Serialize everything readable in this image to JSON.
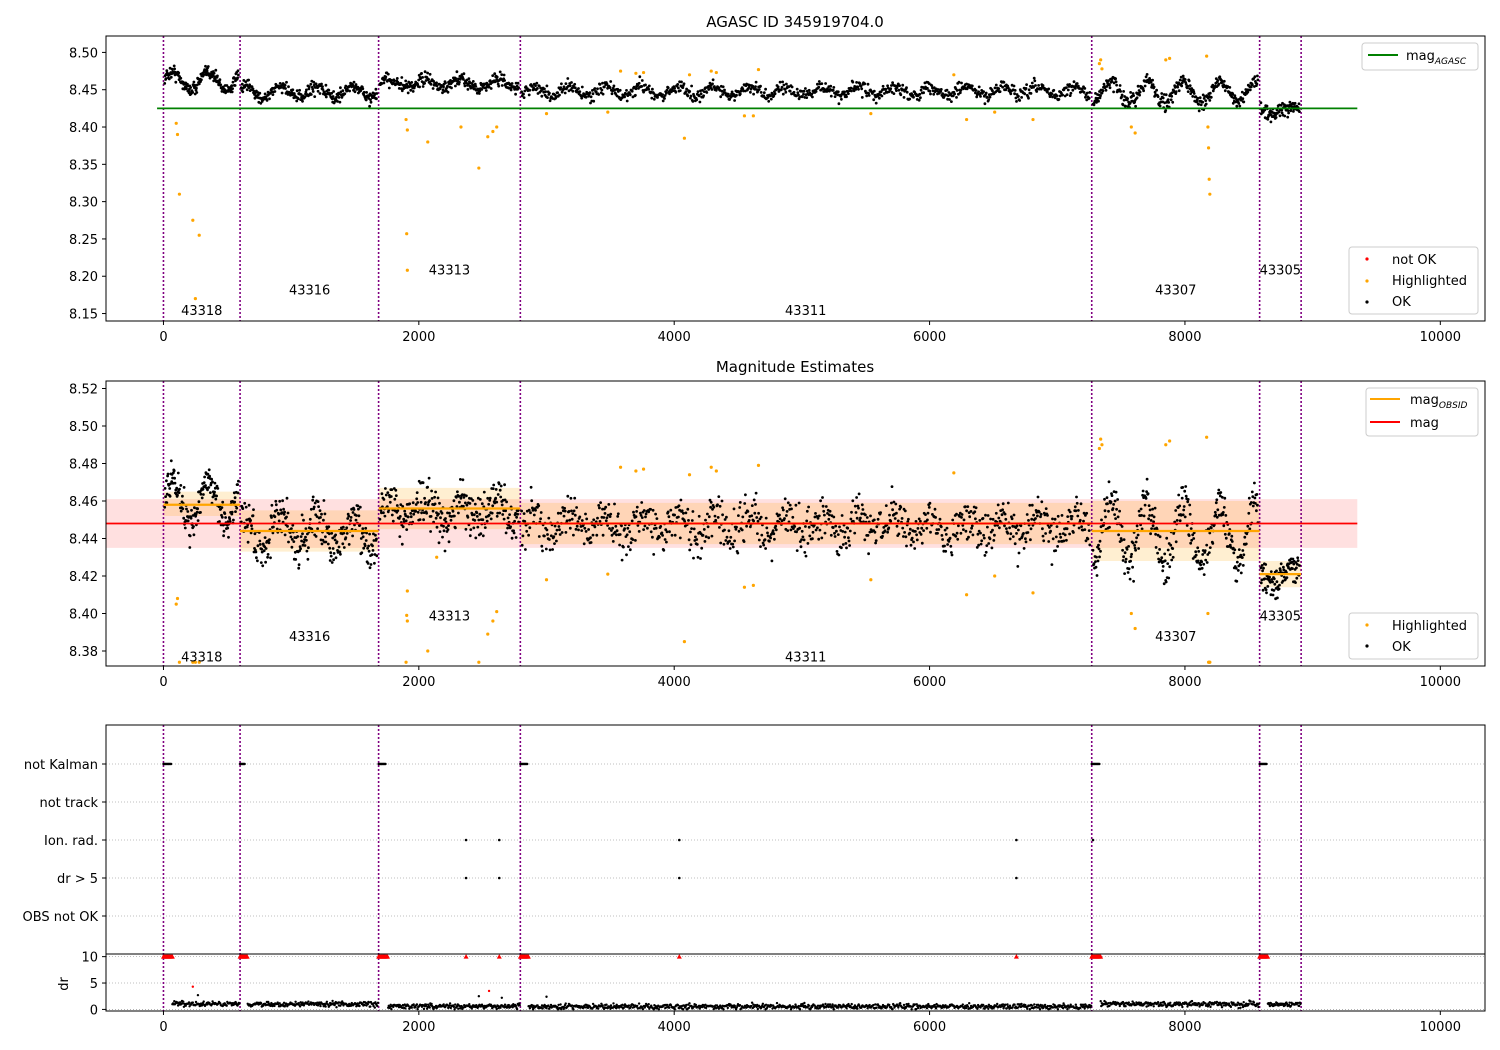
{
  "chart_data": [
    {
      "id": "top",
      "type": "scatter",
      "title": "AGASC ID 345919704.0",
      "xlim": [
        -450,
        10350
      ],
      "ylim": [
        8.14,
        8.522
      ],
      "xticks": [
        0,
        2000,
        4000,
        6000,
        8000,
        10000
      ],
      "xtick_labels": [
        "0",
        "2000",
        "4000",
        "6000",
        "8000",
        "10000"
      ],
      "yticks": [
        8.15,
        8.2,
        8.25,
        8.3,
        8.35,
        8.4,
        8.45,
        8.5
      ],
      "ytick_labels": [
        "8.15",
        "8.20",
        "8.25",
        "8.30",
        "8.35",
        "8.40",
        "8.45",
        "8.50"
      ],
      "obs_boundaries": [
        0,
        600,
        1685,
        2795,
        7270,
        8585,
        8910
      ],
      "obsid_labels": [
        {
          "text": "43318",
          "x": 300,
          "y": 8.155
        },
        {
          "text": "43316",
          "x": 1145,
          "y": 8.182
        },
        {
          "text": "43313",
          "x": 2240,
          "y": 8.209
        },
        {
          "text": "43311",
          "x": 5030,
          "y": 8.155
        },
        {
          "text": "43307",
          "x": 7928,
          "y": 8.182
        },
        {
          "text": "43305",
          "x": 8747,
          "y": 8.209
        }
      ],
      "segments": [
        {
          "x0": 0,
          "x1": 600,
          "mean": 8.462,
          "amp": 0.012,
          "noise": 0.006,
          "n": 180
        },
        {
          "x0": 600,
          "x1": 1685,
          "mean": 8.447,
          "amp": 0.008,
          "noise": 0.006,
          "n": 280
        },
        {
          "x0": 1685,
          "x1": 2795,
          "mean": 8.458,
          "amp": 0.006,
          "noise": 0.006,
          "n": 280
        },
        {
          "x0": 2795,
          "x1": 7270,
          "mean": 8.448,
          "amp": 0.006,
          "noise": 0.006,
          "n": 900
        },
        {
          "x0": 7270,
          "x1": 8585,
          "mean": 8.447,
          "amp": 0.014,
          "noise": 0.007,
          "n": 330
        },
        {
          "x0": 8585,
          "x1": 8910,
          "mean": 8.422,
          "amp": 0.004,
          "noise": 0.006,
          "n": 90
        }
      ],
      "highlighted": [
        [
          100,
          8.405
        ],
        [
          110,
          8.39
        ],
        [
          125,
          8.31
        ],
        [
          230,
          8.275
        ],
        [
          250,
          8.17
        ],
        [
          280,
          8.255
        ],
        [
          1900,
          8.41
        ],
        [
          1910,
          8.396
        ],
        [
          1905,
          8.257
        ],
        [
          1910,
          8.208
        ],
        [
          2070,
          8.38
        ],
        [
          2330,
          8.4
        ],
        [
          2470,
          8.345
        ],
        [
          2540,
          8.387
        ],
        [
          2580,
          8.394
        ],
        [
          2610,
          8.4
        ],
        [
          3000,
          8.418
        ],
        [
          3480,
          8.42
        ],
        [
          3580,
          8.475
        ],
        [
          3700,
          8.472
        ],
        [
          3760,
          8.473
        ],
        [
          4080,
          8.385
        ],
        [
          4120,
          8.47
        ],
        [
          4290,
          8.475
        ],
        [
          4330,
          8.473
        ],
        [
          4550,
          8.415
        ],
        [
          4620,
          8.415
        ],
        [
          4660,
          8.477
        ],
        [
          5540,
          8.418
        ],
        [
          6190,
          8.47
        ],
        [
          6290,
          8.41
        ],
        [
          6510,
          8.42
        ],
        [
          6810,
          8.41
        ],
        [
          7330,
          8.485
        ],
        [
          7340,
          8.49
        ],
        [
          7350,
          8.478
        ],
        [
          7580,
          8.4
        ],
        [
          7610,
          8.392
        ],
        [
          7850,
          8.49
        ],
        [
          7880,
          8.492
        ],
        [
          8170,
          8.495
        ],
        [
          8180,
          8.4
        ],
        [
          8185,
          8.372
        ],
        [
          8190,
          8.33
        ],
        [
          8195,
          8.31
        ]
      ],
      "lines": [
        {
          "name": "mag$_{AGASC}$",
          "y": 8.425,
          "x0": -50,
          "x1": 9350,
          "color": "#008000"
        }
      ],
      "legend_upper": [
        {
          "label": "mag",
          "sub": "AGASC",
          "color": "#008000"
        }
      ],
      "legend_lower": [
        {
          "label": "not OK",
          "color": "#ff0000"
        },
        {
          "label": "Highlighted",
          "color": "#ffa500"
        },
        {
          "label": "OK",
          "color": "#000000"
        }
      ]
    },
    {
      "id": "mid",
      "type": "scatter",
      "title": "Magnitude Estimates",
      "xlim": [
        -450,
        10350
      ],
      "ylim": [
        8.372,
        8.524
      ],
      "xticks": [
        0,
        2000,
        4000,
        6000,
        8000,
        10000
      ],
      "xtick_labels": [
        "0",
        "2000",
        "4000",
        "6000",
        "8000",
        "10000"
      ],
      "yticks": [
        8.38,
        8.4,
        8.42,
        8.44,
        8.46,
        8.48,
        8.5,
        8.52
      ],
      "ytick_labels": [
        "8.38",
        "8.40",
        "8.42",
        "8.44",
        "8.46",
        "8.48",
        "8.50",
        "8.52"
      ],
      "obs_boundaries": [
        0,
        600,
        1685,
        2795,
        7270,
        8585,
        8910
      ],
      "obsid_labels": [
        {
          "text": "43318",
          "x": 300,
          "y": 8.377
        },
        {
          "text": "43316",
          "x": 1145,
          "y": 8.388
        },
        {
          "text": "43313",
          "x": 2240,
          "y": 8.399
        },
        {
          "text": "43311",
          "x": 5030,
          "y": 8.377
        },
        {
          "text": "43307",
          "x": 7928,
          "y": 8.388
        },
        {
          "text": "43305",
          "x": 8747,
          "y": 8.399
        }
      ],
      "mag": {
        "value": 8.448,
        "lo": 8.435,
        "hi": 8.461,
        "x0": -450,
        "x1": 9350,
        "color": "#ff0000"
      },
      "mag_obsid": [
        {
          "x0": 0,
          "x1": 600,
          "y": 8.458,
          "lo": 8.452,
          "hi": 8.465
        },
        {
          "x0": 600,
          "x1": 1685,
          "y": 8.444,
          "lo": 8.433,
          "hi": 8.455
        },
        {
          "x0": 1685,
          "x1": 2795,
          "y": 8.456,
          "lo": 8.445,
          "hi": 8.467
        },
        {
          "x0": 2795,
          "x1": 7270,
          "y": 8.448,
          "lo": 8.437,
          "hi": 8.459
        },
        {
          "x0": 7270,
          "x1": 8585,
          "y": 8.444,
          "lo": 8.428,
          "hi": 8.46
        },
        {
          "x0": 8585,
          "x1": 8910,
          "y": 8.421,
          "lo": 8.414,
          "hi": 8.428
        }
      ],
      "segments": [
        {
          "x0": 0,
          "x1": 600,
          "mean": 8.46,
          "amp": 0.012,
          "noise": 0.007,
          "n": 180
        },
        {
          "x0": 600,
          "x1": 1685,
          "mean": 8.443,
          "amp": 0.008,
          "noise": 0.008,
          "n": 280
        },
        {
          "x0": 1685,
          "x1": 2795,
          "mean": 8.455,
          "amp": 0.006,
          "noise": 0.008,
          "n": 280
        },
        {
          "x0": 2795,
          "x1": 7270,
          "mean": 8.447,
          "amp": 0.006,
          "noise": 0.008,
          "n": 900
        },
        {
          "x0": 7270,
          "x1": 8585,
          "mean": 8.443,
          "amp": 0.016,
          "noise": 0.008,
          "n": 330
        },
        {
          "x0": 8585,
          "x1": 8910,
          "mean": 8.42,
          "amp": 0.004,
          "noise": 0.006,
          "n": 90
        }
      ],
      "highlighted": [
        [
          100,
          8.405
        ],
        [
          110,
          8.408
        ],
        [
          125,
          8.374
        ],
        [
          230,
          8.374
        ],
        [
          250,
          8.374
        ],
        [
          280,
          8.374
        ],
        [
          1900,
          8.374
        ],
        [
          1910,
          8.412
        ],
        [
          1905,
          8.399
        ],
        [
          1910,
          8.396
        ],
        [
          2070,
          8.38
        ],
        [
          2140,
          8.43
        ],
        [
          2470,
          8.374
        ],
        [
          2540,
          8.389
        ],
        [
          2580,
          8.396
        ],
        [
          2610,
          8.401
        ],
        [
          3000,
          8.418
        ],
        [
          3480,
          8.421
        ],
        [
          3580,
          8.478
        ],
        [
          3700,
          8.476
        ],
        [
          3760,
          8.477
        ],
        [
          4080,
          8.385
        ],
        [
          4120,
          8.474
        ],
        [
          4290,
          8.478
        ],
        [
          4330,
          8.476
        ],
        [
          4550,
          8.414
        ],
        [
          4620,
          8.415
        ],
        [
          4660,
          8.479
        ],
        [
          5540,
          8.418
        ],
        [
          6190,
          8.475
        ],
        [
          6290,
          8.41
        ],
        [
          6510,
          8.42
        ],
        [
          6810,
          8.411
        ],
        [
          7330,
          8.488
        ],
        [
          7340,
          8.493
        ],
        [
          7350,
          8.49
        ],
        [
          7580,
          8.4
        ],
        [
          7610,
          8.392
        ],
        [
          7850,
          8.49
        ],
        [
          7880,
          8.492
        ],
        [
          8170,
          8.494
        ],
        [
          8180,
          8.4
        ],
        [
          8185,
          8.374
        ],
        [
          8190,
          8.374
        ],
        [
          8195,
          8.374
        ]
      ],
      "legend_upper": [
        {
          "label": "mag",
          "sub": "OBSID",
          "color": "#ffa500"
        },
        {
          "label": "mag",
          "sub": "",
          "color": "#ff0000"
        }
      ],
      "legend_lower": [
        {
          "label": "Highlighted",
          "color": "#ffa500"
        },
        {
          "label": "OK",
          "color": "#000000"
        }
      ]
    },
    {
      "id": "flags",
      "type": "scatter",
      "xlim": [
        -450,
        10350
      ],
      "categories": [
        "not Kalman",
        "not track",
        "Ion. rad.",
        "dr > 5",
        "OBS not OK"
      ],
      "obs_boundaries": [
        0,
        600,
        1685,
        2795,
        7270,
        8585,
        8910
      ],
      "not_kalman": [
        [
          0,
          60
        ],
        [
          600,
          640
        ],
        [
          1685,
          1740
        ],
        [
          2795,
          2850
        ],
        [
          7270,
          7330
        ],
        [
          8585,
          8640
        ]
      ],
      "ion_rad": [
        2370,
        2630,
        4040,
        6680,
        7280
      ],
      "dr_gt_5": [
        2370,
        2630,
        4040,
        6680
      ]
    },
    {
      "id": "dr",
      "type": "scatter",
      "xlim": [
        -450,
        10350
      ],
      "ylim": [
        -0.3,
        10.5
      ],
      "ylabel": "dr",
      "yticks": [
        0,
        5,
        10
      ],
      "ytick_labels": [
        "0",
        "5",
        "10"
      ],
      "xticks": [
        0,
        2000,
        4000,
        6000,
        8000,
        10000
      ],
      "xtick_labels": [
        "0",
        "2000",
        "4000",
        "6000",
        "8000",
        "10000"
      ],
      "obs_boundaries": [
        0,
        600,
        1685,
        2795,
        7270,
        8585,
        8910
      ],
      "capped_ranges": [
        [
          0,
          70
        ],
        [
          600,
          660
        ],
        [
          1685,
          1760
        ],
        [
          2795,
          2860
        ],
        [
          7270,
          7340
        ],
        [
          8585,
          8650
        ]
      ],
      "capped_points": [
        2370,
        2630,
        4040,
        6680
      ],
      "extra_red": [
        [
          230,
          4.3
        ],
        [
          2550,
          3.5
        ]
      ],
      "extra_black": [
        [
          270,
          2.7
        ],
        [
          2470,
          2.5
        ],
        [
          2650,
          2.2
        ],
        [
          3000,
          2.4
        ]
      ],
      "black_level": [
        {
          "x0": 70,
          "x1": 600,
          "mean": 1.0
        },
        {
          "x0": 660,
          "x1": 1685,
          "mean": 1.0
        },
        {
          "x0": 1760,
          "x1": 2795,
          "mean": 0.6
        },
        {
          "x0": 2860,
          "x1": 7270,
          "mean": 0.55
        },
        {
          "x0": 7340,
          "x1": 8585,
          "mean": 1.0
        },
        {
          "x0": 8650,
          "x1": 8910,
          "mean": 1.0
        }
      ]
    }
  ]
}
